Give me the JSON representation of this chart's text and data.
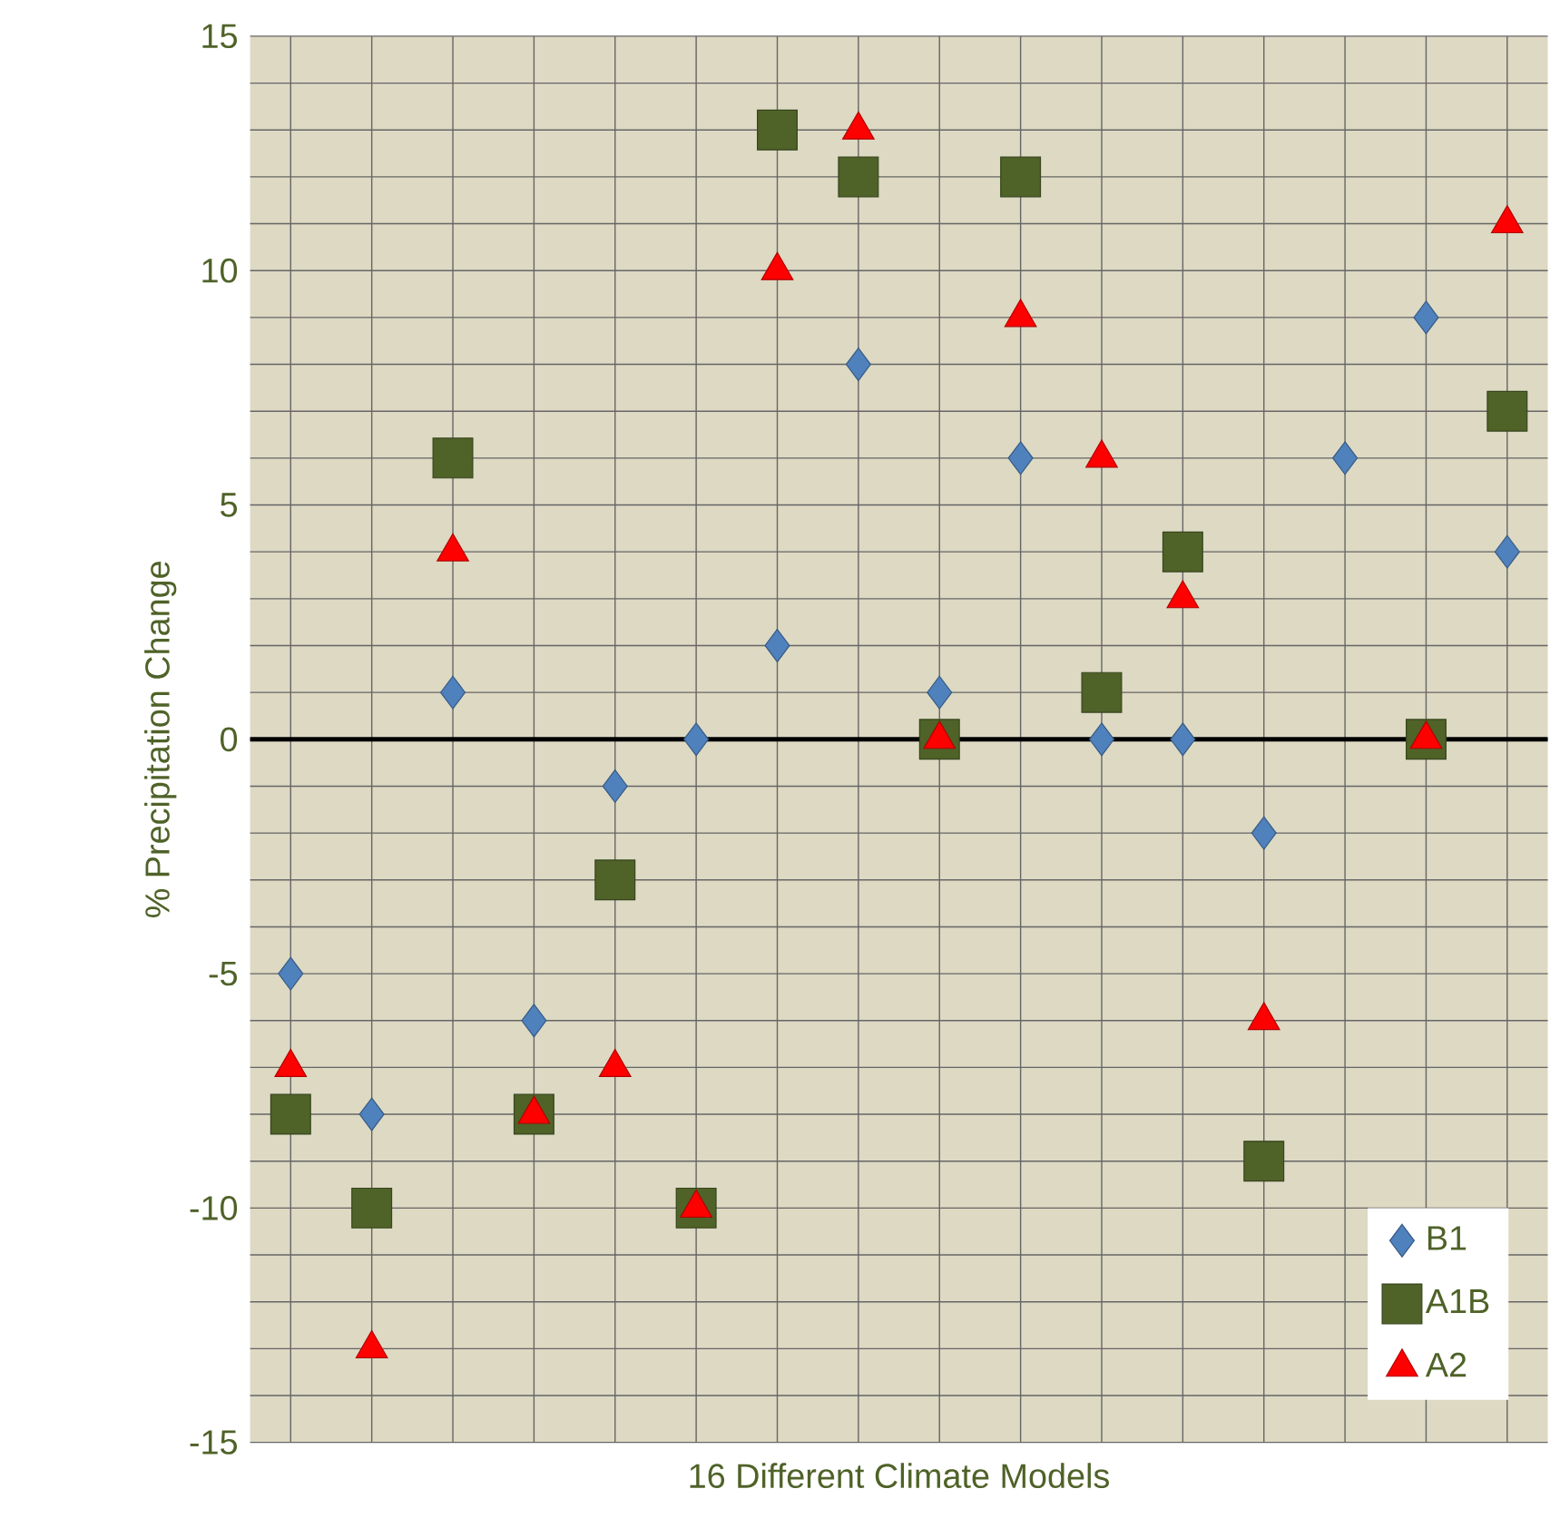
{
  "chart_data": {
    "type": "scatter",
    "xlabel": "16 Different Climate Models",
    "ylabel": "% Precipitation Change",
    "categories": [
      null,
      null,
      null,
      null,
      null,
      null,
      null,
      null,
      null,
      null,
      null,
      null,
      null,
      null,
      null,
      null
    ],
    "ylim": [
      -15,
      15
    ],
    "yticks": [
      -15,
      -10,
      -5,
      0,
      5,
      10,
      15
    ],
    "grid": true,
    "legend": "bottom right",
    "ref_lines": [
      {
        "axis": "y",
        "value": 0,
        "color": "#000000"
      }
    ],
    "series": [
      {
        "name": "B1",
        "color": "#4f81bd",
        "marker": "diamond",
        "values": [
          -5,
          -8,
          1,
          -6,
          -1,
          0,
          2,
          8,
          1,
          6,
          0,
          0,
          -2,
          6,
          9,
          4
        ]
      },
      {
        "name": "A1B",
        "color": "#4f6228",
        "marker": "square",
        "values": [
          -8,
          -10,
          6,
          -8,
          -3,
          -10,
          13,
          12,
          0,
          12,
          1,
          4,
          -9,
          null,
          0,
          7
        ]
      },
      {
        "name": "A2",
        "color": "#ff0000",
        "marker": "triangle",
        "values": [
          -7,
          -13,
          4,
          -8,
          -7,
          -10,
          10,
          13,
          0,
          9,
          6,
          3,
          -6,
          null,
          0,
          11
        ]
      }
    ]
  }
}
